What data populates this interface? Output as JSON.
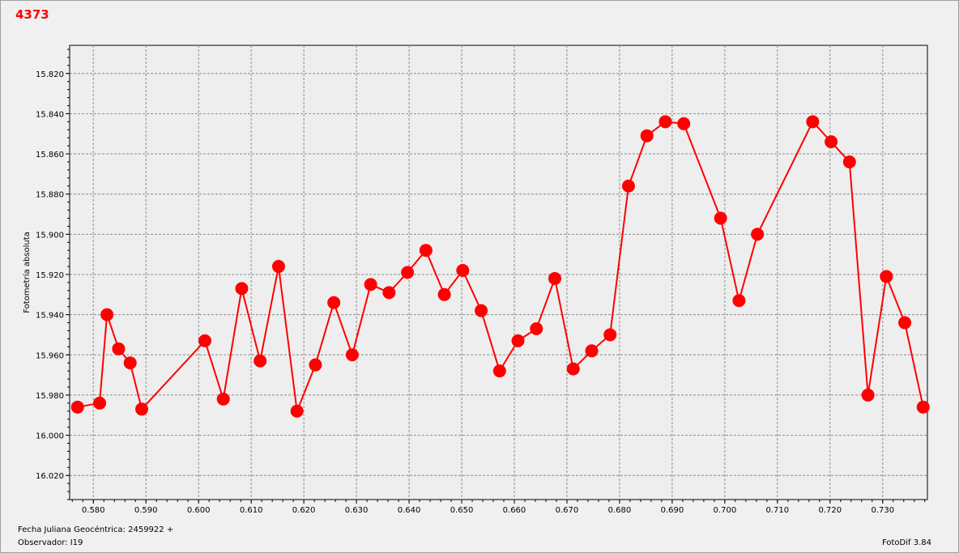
{
  "title": "4373",
  "footer": {
    "date_label": "Fecha Juliana Geocéntrica: 2459922 +",
    "observer_label": "Observador: I19",
    "version": "FotoDif 3.84"
  },
  "chart_data": {
    "type": "line",
    "title": "4373",
    "xlabel": "Fecha Juliana Geocéntrica: 2459922 +",
    "ylabel": "Fotometría absoluta",
    "xlim": [
      0.5755,
      0.7385
    ],
    "ylim": [
      15.806,
      16.032
    ],
    "y_inverted": true,
    "grid": true,
    "x_ticks": [
      0.58,
      0.59,
      0.6,
      0.61,
      0.62,
      0.63,
      0.64,
      0.65,
      0.66,
      0.67,
      0.68,
      0.69,
      0.7,
      0.71,
      0.72,
      0.73
    ],
    "x_tick_labels": [
      "0.580",
      "0.590",
      "0.600",
      "0.610",
      "0.620",
      "0.630",
      "0.640",
      "0.650",
      "0.660",
      "0.670",
      "0.680",
      "0.690",
      "0.700",
      "0.710",
      "0.720",
      "0.730"
    ],
    "y_ticks": [
      15.82,
      15.84,
      15.86,
      15.88,
      15.9,
      15.92,
      15.94,
      15.96,
      15.98,
      16.0,
      16.02
    ],
    "y_tick_labels": [
      "15.820",
      "15.840",
      "15.860",
      "15.880",
      "15.900",
      "15.920",
      "15.940",
      "15.960",
      "15.980",
      "16.000",
      "16.020"
    ],
    "series": [
      {
        "color": "#ff0000",
        "x": [
          0.577,
          0.5812,
          0.5826,
          0.5848,
          0.587,
          0.5892,
          0.6012,
          0.6047,
          0.6082,
          0.6117,
          0.6152,
          0.6187,
          0.6222,
          0.6257,
          0.6292,
          0.6327,
          0.6362,
          0.6397,
          0.6432,
          0.6467,
          0.6502,
          0.6537,
          0.6572,
          0.6607,
          0.6642,
          0.6677,
          0.6712,
          0.6747,
          0.6782,
          0.6817,
          0.6852,
          0.6887,
          0.6922,
          0.6992,
          0.7027,
          0.7062,
          0.7167,
          0.7202,
          0.7237,
          0.7272,
          0.7307,
          0.7342,
          0.7377
        ],
        "y": [
          15.986,
          15.984,
          15.94,
          15.957,
          15.964,
          15.987,
          15.953,
          15.982,
          15.927,
          15.963,
          15.916,
          15.988,
          15.965,
          15.934,
          15.96,
          15.925,
          15.929,
          15.919,
          15.908,
          15.93,
          15.918,
          15.938,
          15.968,
          15.953,
          15.947,
          15.922,
          15.967,
          15.958,
          15.95,
          15.876,
          15.851,
          15.844,
          15.845,
          15.892,
          15.933,
          15.9,
          15.844,
          15.854,
          15.864,
          15.98,
          15.921,
          15.944,
          15.986
        ]
      }
    ]
  }
}
